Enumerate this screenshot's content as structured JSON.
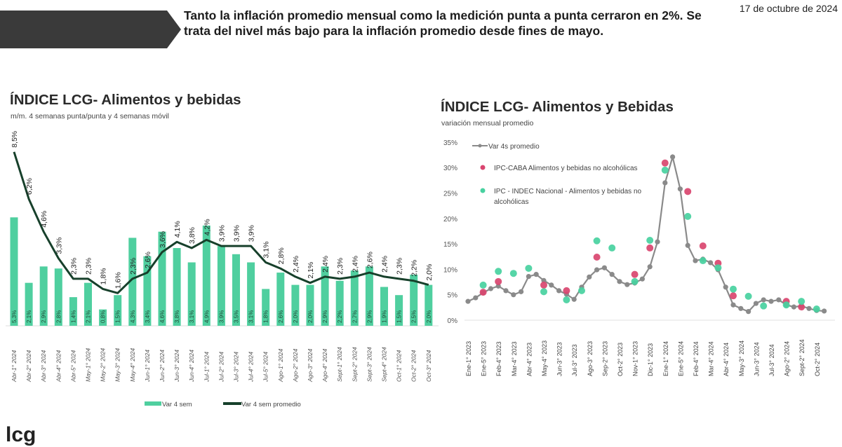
{
  "header": {
    "headline": "Tanto la inflación promedio mensual como la medición punta a punta cerraron en 2%. Se trata del nivel más bajo para la inflación promedio desde fines de mayo.",
    "date": "17 de octubre de 2024",
    "logo_text": "lcg"
  },
  "colors": {
    "bar": "#4fcf9f",
    "line_dark": "#17402b",
    "grey_line": "#8a8a8a",
    "caba": "#d9456f",
    "indec": "#48d1a0",
    "banner": "#3a3a3a"
  },
  "chart_data": [
    {
      "type": "bar+line",
      "title": "ÍNDICE LCG- Alimentos y bebidas",
      "subtitle": "m/m. 4 semanas punta/punta y 4 semanas móvil",
      "categories": [
        "Abr-1° 2024",
        "Abr-2° 2024",
        "Abr-3° 2024",
        "Abr-4° 2024",
        "Abr-5° 2024",
        "May-1° 2024",
        "May-2° 2024",
        "May-3° 2024",
        "May-4° 2024",
        "Jun-1° 2024",
        "Jun-2° 2024",
        "Jun-3° 2024",
        "Jun-4° 2024",
        "Jul-1° 2024",
        "Jul-2° 2024",
        "Jul-3° 2024",
        "Jul-4° 2024",
        "Jul-5° 2024",
        "Ago-1° 2024",
        "Ago-2° 2024",
        "Ago-3° 2024",
        "Ago-4° 2024",
        "Sept-1° 2024",
        "Sept-2° 2024",
        "Sept-3° 2024",
        "Sept-4° 2024",
        "Oct-1° 2024",
        "Oct-2° 2024",
        "Oct-3° 2024"
      ],
      "series": [
        {
          "name": "Var 4 sem",
          "type": "bar",
          "values": [
            5.3,
            2.1,
            2.9,
            2.8,
            1.4,
            2.1,
            0.8,
            1.5,
            4.3,
            3.4,
            4.6,
            3.8,
            3.1,
            4.9,
            3.9,
            3.5,
            3.1,
            1.8,
            2.6,
            2.0,
            2.0,
            2.9,
            2.2,
            2.7,
            2.9,
            1.9,
            1.5,
            2.5,
            2.0
          ]
        },
        {
          "name": "Var 4 sem promedio",
          "type": "line",
          "values": [
            8.5,
            6.2,
            4.6,
            3.3,
            2.3,
            2.3,
            1.8,
            1.6,
            2.3,
            2.6,
            3.6,
            4.1,
            3.8,
            4.2,
            3.9,
            3.9,
            3.9,
            3.1,
            2.8,
            2.4,
            2.1,
            2.4,
            2.3,
            2.4,
            2.6,
            2.4,
            2.3,
            2.2,
            2.0
          ]
        }
      ],
      "unit": "%",
      "ylim": [
        0,
        9
      ],
      "legend": "bottom",
      "grid": false
    },
    {
      "type": "line+scatter",
      "title": "ÍNDICE LCG- Alimentos y Bebidas",
      "subtitle": "variación mensual promedio",
      "tick_labels": [
        "Ene-1° 2023",
        "Ene-5° 2023",
        "Feb-4° 2023",
        "Mar-4° 2023",
        "Abr-4° 2023",
        "May-4° 2023",
        "Jun-3° 2023",
        "Jul-3° 2023",
        "Ago-3° 2023",
        "Sep-2° 2023",
        "Oct-2° 2023",
        "Nov-1° 2023",
        "Dic-1° 2023",
        "Ene-1° 2024",
        "Ene-5° 2024",
        "Feb-4° 2024",
        "Mar-4° 2024",
        "Abr-4° 2024",
        "May-3° 2024",
        "Jun-3° 2024",
        "Jul-3° 2024",
        "Ago-2° 2024",
        "Sept-2° 2024",
        "Oct-2° 2024"
      ],
      "ylim": [
        0,
        35
      ],
      "ystep": 5,
      "legend": "top-left",
      "grid": false,
      "series": [
        {
          "name": "Var 4s promedio",
          "type": "line",
          "points": [
            [
              "2023-01-01",
              3.7
            ],
            [
              "2023-01-15",
              4.4
            ],
            [
              "2023-01-29",
              5.4
            ],
            [
              "2023-02-12",
              6.2
            ],
            [
              "2023-02-26",
              6.7
            ],
            [
              "2023-03-12",
              5.8
            ],
            [
              "2023-03-26",
              5.0
            ],
            [
              "2023-04-09",
              5.6
            ],
            [
              "2023-04-23",
              8.6
            ],
            [
              "2023-05-07",
              9.0
            ],
            [
              "2023-05-21",
              7.8
            ],
            [
              "2023-06-04",
              6.9
            ],
            [
              "2023-06-18",
              5.8
            ],
            [
              "2023-07-02",
              5.1
            ],
            [
              "2023-07-16",
              4.1
            ],
            [
              "2023-07-30",
              6.5
            ],
            [
              "2023-08-13",
              8.5
            ],
            [
              "2023-08-27",
              9.9
            ],
            [
              "2023-09-10",
              10.3
            ],
            [
              "2023-09-24",
              9.0
            ],
            [
              "2023-10-08",
              7.6
            ],
            [
              "2023-10-22",
              7.0
            ],
            [
              "2023-11-05",
              7.3
            ],
            [
              "2023-11-19",
              8.1
            ],
            [
              "2023-12-03",
              10.5
            ],
            [
              "2023-12-17",
              15.4
            ],
            [
              "2023-12-31",
              27.0
            ],
            [
              "2024-01-14",
              32.1
            ],
            [
              "2024-01-28",
              25.8
            ],
            [
              "2024-02-11",
              14.7
            ],
            [
              "2024-02-25",
              11.7
            ],
            [
              "2024-03-10",
              12.0
            ],
            [
              "2024-03-24",
              11.3
            ],
            [
              "2024-04-07",
              9.9
            ],
            [
              "2024-04-21",
              6.5
            ],
            [
              "2024-05-05",
              3.0
            ],
            [
              "2024-05-19",
              2.3
            ],
            [
              "2024-06-02",
              1.7
            ],
            [
              "2024-06-16",
              3.3
            ],
            [
              "2024-06-30",
              4.0
            ],
            [
              "2024-07-14",
              3.7
            ],
            [
              "2024-07-28",
              4.0
            ],
            [
              "2024-08-11",
              3.0
            ],
            [
              "2024-08-25",
              2.6
            ],
            [
              "2024-09-08",
              2.8
            ],
            [
              "2024-09-22",
              2.3
            ],
            [
              "2024-10-06",
              1.9
            ],
            [
              "2024-10-20",
              1.8
            ]
          ]
        },
        {
          "name": "IPC-CABA Alimentos y bebidas no alcohólicas",
          "type": "scatter",
          "points": [
            [
              "2023-01-29",
              5.5
            ],
            [
              "2023-02-26",
              7.6
            ],
            [
              "2023-05-21",
              6.9
            ],
            [
              "2023-07-02",
              5.8
            ],
            [
              "2023-08-27",
              12.4
            ],
            [
              "2023-11-05",
              9.0
            ],
            [
              "2023-12-03",
              14.2
            ],
            [
              "2023-12-31",
              30.9
            ],
            [
              "2024-02-11",
              25.3
            ],
            [
              "2024-03-10",
              14.6
            ],
            [
              "2024-04-07",
              11.2
            ],
            [
              "2024-05-05",
              4.8
            ],
            [
              "2024-08-11",
              3.7
            ],
            [
              "2024-09-08",
              2.6
            ]
          ]
        },
        {
          "name": "IPC - INDEC Nacional - Alimentos y bebidas no alcohólicas",
          "type": "scatter",
          "points": [
            [
              "2023-01-29",
              6.9
            ],
            [
              "2023-02-26",
              9.6
            ],
            [
              "2023-03-26",
              9.2
            ],
            [
              "2023-04-23",
              10.2
            ],
            [
              "2023-05-21",
              5.6
            ],
            [
              "2023-07-02",
              4.0
            ],
            [
              "2023-07-30",
              5.8
            ],
            [
              "2023-08-27",
              15.6
            ],
            [
              "2023-09-24",
              14.2
            ],
            [
              "2023-11-05",
              7.6
            ],
            [
              "2023-12-03",
              15.7
            ],
            [
              "2023-12-31",
              29.5
            ],
            [
              "2024-02-11",
              20.4
            ],
            [
              "2024-03-10",
              11.7
            ],
            [
              "2024-04-07",
              10.3
            ],
            [
              "2024-05-05",
              6.1
            ],
            [
              "2024-06-02",
              4.7
            ],
            [
              "2024-06-30",
              2.8
            ],
            [
              "2024-08-11",
              3.0
            ],
            [
              "2024-09-08",
              3.7
            ],
            [
              "2024-10-06",
              2.2
            ]
          ]
        }
      ]
    }
  ]
}
